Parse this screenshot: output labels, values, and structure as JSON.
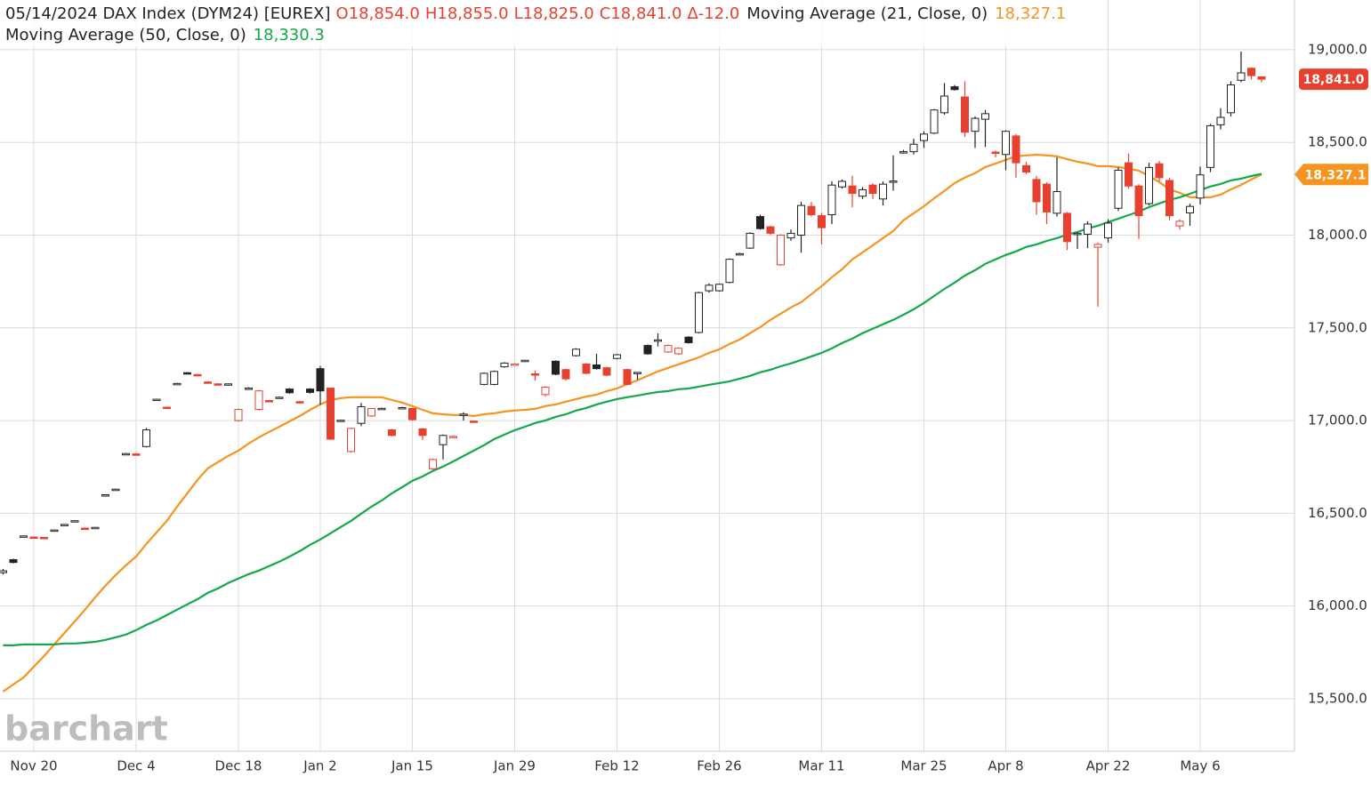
{
  "chart_data": {
    "type": "candlestick",
    "title": "05/14/2024 DAX Index (DYM24) [EUREX]",
    "quote": [
      "O18,854.0",
      "H18,855.0",
      "L18,825.0",
      "C18,841.0",
      "Δ-12.0"
    ],
    "last_price_label": "18,841.0",
    "watermark": "barchart",
    "up_color": "#222222",
    "down_color": "#e8402f",
    "grid": true,
    "ylim": [
      15217,
      19268
    ],
    "yticks": [
      {
        "value": 15500,
        "label": "15,500.0"
      },
      {
        "value": 16000,
        "label": "16,000.0"
      },
      {
        "value": 16500,
        "label": "16,500.0"
      },
      {
        "value": 17000,
        "label": "17,000.0"
      },
      {
        "value": 17500,
        "label": "17,500.0"
      },
      {
        "value": 18000,
        "label": "18,000.0"
      },
      {
        "value": 18500,
        "label": "18,500.0"
      },
      {
        "value": 19000,
        "label": "19,000.0"
      }
    ],
    "categories": [
      null,
      null,
      null,
      "Nov 20",
      null,
      null,
      null,
      null,
      null,
      null,
      null,
      null,
      null,
      "Dec 4",
      null,
      null,
      null,
      null,
      null,
      null,
      null,
      null,
      null,
      "Dec 18",
      null,
      null,
      null,
      null,
      null,
      null,
      null,
      "Jan 2",
      null,
      null,
      null,
      null,
      null,
      null,
      null,
      null,
      "Jan 15",
      null,
      null,
      null,
      null,
      null,
      null,
      null,
      null,
      null,
      "Jan 29",
      null,
      null,
      null,
      null,
      null,
      null,
      null,
      null,
      null,
      "Feb 12",
      null,
      null,
      null,
      null,
      null,
      null,
      null,
      null,
      null,
      "Feb 26",
      null,
      null,
      null,
      null,
      null,
      null,
      null,
      null,
      null,
      "Mar 11",
      null,
      null,
      null,
      null,
      null,
      null,
      null,
      null,
      null,
      "Mar 25",
      null,
      null,
      null,
      null,
      null,
      null,
      null,
      "Apr 8",
      null,
      null,
      null,
      null,
      null,
      null,
      null,
      null,
      null,
      "Apr 22",
      null,
      null,
      null,
      null,
      null,
      null,
      null,
      null,
      "May 6",
      null,
      null,
      null,
      null,
      null,
      null
    ],
    "open": [
      16180,
      16250,
      16375,
      16372,
      16370,
      16408,
      16438,
      16458,
      16420,
      16422,
      16598,
      16628,
      16818,
      16820,
      16860,
      17112,
      17072,
      17198,
      17258,
      17248,
      17208,
      17198,
      17194,
      17000,
      17172,
      17060,
      17108,
      17122,
      17170,
      17102,
      17170,
      17280,
      17175,
      16998,
      16833,
      16985,
      17025,
      17062,
      16950,
      17068,
      17065,
      16955,
      16740,
      16870,
      16912,
      17032,
      16997,
      17195,
      17195,
      17290,
      17303,
      17323,
      17252,
      17140,
      17320,
      17275,
      17350,
      17305,
      17300,
      17285,
      17335,
      17275,
      17258,
      17405,
      17432,
      17370,
      17360,
      17450,
      17475,
      17700,
      17700,
      17745,
      17898,
      17930,
      18100,
      18045,
      17840,
      17985,
      18000,
      18155,
      18105,
      18110,
      18260,
      18265,
      18210,
      18270,
      18195,
      18288,
      18448,
      18450,
      18510,
      18550,
      18660,
      18800,
      18745,
      18560,
      18625,
      18448,
      18435,
      18535,
      18375,
      18300,
      18275,
      18118,
      18118,
      18008,
      18005,
      17935,
      17985,
      18145,
      18390,
      18265,
      18170,
      18385,
      18295,
      18050,
      18120,
      18200,
      18365,
      18595,
      18660,
      18835,
      18900,
      18854
    ],
    "high": [
      16200,
      16255,
      16380,
      16375,
      16372,
      16412,
      16442,
      16462,
      16424,
      16426,
      16602,
      16632,
      16825,
      16825,
      16960,
      17118,
      17076,
      17204,
      17262,
      17252,
      17212,
      17202,
      17200,
      17065,
      17180,
      17165,
      17112,
      17130,
      17175,
      17106,
      17175,
      17295,
      17178,
      17004,
      16962,
      17095,
      17068,
      17070,
      16955,
      17074,
      17068,
      16960,
      16795,
      16925,
      16918,
      17045,
      17000,
      17260,
      17270,
      17315,
      17308,
      17328,
      17270,
      17185,
      17325,
      17280,
      17390,
      17310,
      17360,
      17290,
      17360,
      17280,
      17262,
      17410,
      17470,
      17410,
      17395,
      17455,
      17695,
      17740,
      17740,
      17875,
      17905,
      18015,
      18110,
      18050,
      18005,
      18030,
      18180,
      18180,
      18120,
      18290,
      18300,
      18320,
      18260,
      18280,
      18290,
      18430,
      18460,
      18520,
      18560,
      18680,
      18820,
      18810,
      18830,
      18640,
      18675,
      18455,
      18565,
      18545,
      18395,
      18320,
      18285,
      18420,
      18125,
      18015,
      18075,
      17960,
      18085,
      18365,
      18440,
      18275,
      18390,
      18400,
      18310,
      18085,
      18170,
      18370,
      18600,
      18685,
      18830,
      18990,
      18905,
      18855
    ],
    "low": [
      16170,
      16230,
      16370,
      16368,
      16366,
      16405,
      16435,
      16455,
      16416,
      16418,
      16595,
      16625,
      16815,
      16815,
      16855,
      17108,
      17066,
      17195,
      17252,
      17242,
      17202,
      17192,
      17190,
      16995,
      17168,
      17055,
      17100,
      17120,
      17145,
      17096,
      17145,
      17085,
      16895,
      16995,
      16828,
      16970,
      17020,
      17058,
      16915,
      17064,
      17000,
      16895,
      16735,
      16790,
      16908,
      17000,
      16990,
      17190,
      17190,
      17285,
      17298,
      17318,
      17215,
      17130,
      17245,
      17215,
      17345,
      17250,
      17275,
      17240,
      17330,
      17190,
      17220,
      17355,
      17400,
      17365,
      17355,
      17415,
      17470,
      17690,
      17695,
      17740,
      17895,
      17925,
      18030,
      18000,
      17835,
      17970,
      17905,
      18100,
      17950,
      18060,
      18250,
      18150,
      18195,
      18195,
      18160,
      18240,
      18440,
      18435,
      18470,
      18545,
      18650,
      18780,
      18530,
      18470,
      18475,
      18420,
      18350,
      18310,
      18330,
      18110,
      18060,
      18100,
      17920,
      17925,
      17930,
      17615,
      17960,
      18130,
      18250,
      17980,
      18160,
      18290,
      18080,
      18030,
      18050,
      18165,
      18340,
      18570,
      18640,
      18825,
      18840,
      18825
    ],
    "close": [
      16190,
      16235,
      16378,
      16370,
      16368,
      16410,
      16440,
      16460,
      16418,
      16424,
      16600,
      16630,
      16822,
      16818,
      16950,
      17115,
      17070,
      17200,
      17255,
      17245,
      17205,
      17195,
      17198,
      17060,
      17175,
      17160,
      17105,
      17126,
      17150,
      17100,
      17152,
      17160,
      16900,
      17002,
      16958,
      17075,
      17065,
      17066,
      16920,
      17070,
      17005,
      16920,
      16790,
      16920,
      16915,
      17035,
      16995,
      17255,
      17265,
      17310,
      17305,
      17325,
      17250,
      17180,
      17250,
      17225,
      17385,
      17255,
      17280,
      17245,
      17355,
      17195,
      17260,
      17360,
      17435,
      17405,
      17390,
      17420,
      17690,
      17730,
      17735,
      17870,
      17900,
      18010,
      18035,
      18010,
      18000,
      18010,
      18160,
      18110,
      18040,
      18270,
      18290,
      18225,
      18245,
      18225,
      18275,
      18292,
      18450,
      18490,
      18545,
      18675,
      18750,
      18785,
      18555,
      18630,
      18655,
      18445,
      18560,
      18390,
      18340,
      18180,
      18125,
      18235,
      17965,
      18010,
      18060,
      17950,
      18065,
      18350,
      18265,
      18105,
      18365,
      18310,
      18105,
      18075,
      18155,
      18325,
      18590,
      18635,
      18810,
      18875,
      18860,
      18841
    ],
    "series": [
      {
        "name": "Moving Average  (21, Close, 0)",
        "color": "#f7931e",
        "last_value_label": "18,327.1",
        "values": [
          15539,
          15577,
          15615,
          15673,
          15730,
          15793,
          15855,
          15917,
          15980,
          16047,
          16109,
          16167,
          16219,
          16267,
          16335,
          16397,
          16459,
          16536,
          16608,
          16680,
          16742,
          16776,
          16809,
          16838,
          16876,
          16910,
          16939,
          16967,
          16996,
          17025,
          17058,
          17087,
          17111,
          17121,
          17126,
          17126,
          17126,
          17126,
          17111,
          17097,
          17078,
          17058,
          17039,
          17034,
          17030,
          17030,
          17025,
          17034,
          17039,
          17049,
          17054,
          17058,
          17063,
          17078,
          17087,
          17102,
          17116,
          17130,
          17140,
          17159,
          17173,
          17197,
          17217,
          17241,
          17265,
          17284,
          17303,
          17322,
          17341,
          17365,
          17384,
          17413,
          17437,
          17471,
          17504,
          17543,
          17576,
          17610,
          17638,
          17682,
          17725,
          17773,
          17816,
          17869,
          17907,
          17945,
          17984,
          18022,
          18080,
          18118,
          18156,
          18199,
          18238,
          18281,
          18310,
          18334,
          18367,
          18386,
          18406,
          18425,
          18430,
          18434,
          18430,
          18425,
          18410,
          18396,
          18386,
          18372,
          18372,
          18367,
          18358,
          18348,
          18319,
          18286,
          18247,
          18228,
          18204,
          18204,
          18204,
          18219,
          18247,
          18271,
          18300,
          18327.1
        ]
      },
      {
        "name": "Moving Average  (50, Close, 0)",
        "color": "#13a84a",
        "last_value_label": "18,330.3",
        "values": [
          15788,
          15788,
          15793,
          15793,
          15793,
          15793,
          15798,
          15798,
          15802,
          15807,
          15817,
          15831,
          15846,
          15870,
          15898,
          15922,
          15951,
          15980,
          16009,
          16037,
          16071,
          16095,
          16124,
          16148,
          16172,
          16191,
          16215,
          16239,
          16267,
          16296,
          16330,
          16359,
          16392,
          16426,
          16459,
          16498,
          16536,
          16569,
          16608,
          16641,
          16675,
          16699,
          16728,
          16752,
          16780,
          16809,
          16838,
          16867,
          16900,
          16924,
          16948,
          16967,
          16987,
          17001,
          17020,
          17034,
          17054,
          17068,
          17087,
          17102,
          17116,
          17126,
          17135,
          17145,
          17154,
          17159,
          17169,
          17173,
          17183,
          17193,
          17202,
          17212,
          17226,
          17241,
          17260,
          17274,
          17293,
          17308,
          17327,
          17346,
          17365,
          17389,
          17418,
          17442,
          17471,
          17495,
          17519,
          17543,
          17571,
          17600,
          17634,
          17672,
          17710,
          17744,
          17782,
          17811,
          17845,
          17869,
          17893,
          17912,
          17936,
          17950,
          17969,
          17984,
          18003,
          18017,
          18036,
          18051,
          18070,
          18089,
          18108,
          18127,
          18151,
          18171,
          18190,
          18204,
          18223,
          18243,
          18262,
          18276,
          18295,
          18305,
          18319,
          18330.3
        ]
      }
    ]
  }
}
